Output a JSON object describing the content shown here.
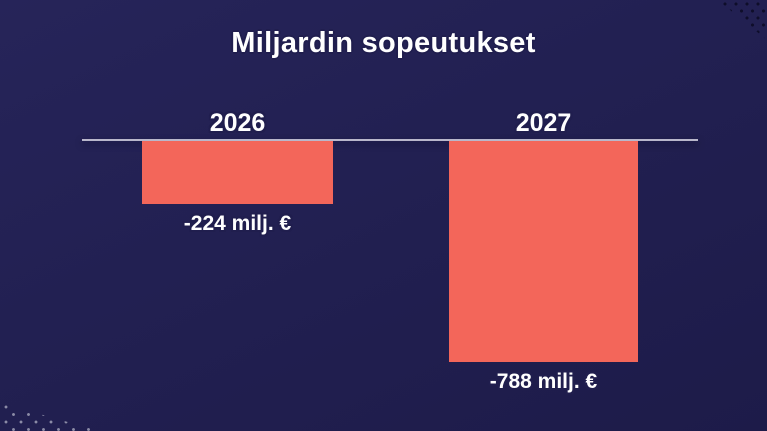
{
  "chart_data": {
    "type": "bar",
    "title": "Miljardin sopeutukset",
    "categories": [
      "2026",
      "2027"
    ],
    "values": [
      -224,
      -788
    ],
    "value_labels": [
      "-224 milj. €",
      "-788 milj. €"
    ],
    "unit": "milj. €",
    "ylim": [
      -800,
      0
    ],
    "baseline_value": 0,
    "grid": false,
    "legend": "none",
    "orientation": "vertical",
    "bars_direction": "downward-from-zero-baseline",
    "colors": {
      "bar": "#f3665a",
      "background_top": "#262459",
      "background_bottom": "#1d1b49",
      "baseline": "#b9b7cb",
      "label_text": "#ffffff",
      "label_outline": "#201e4e"
    }
  }
}
